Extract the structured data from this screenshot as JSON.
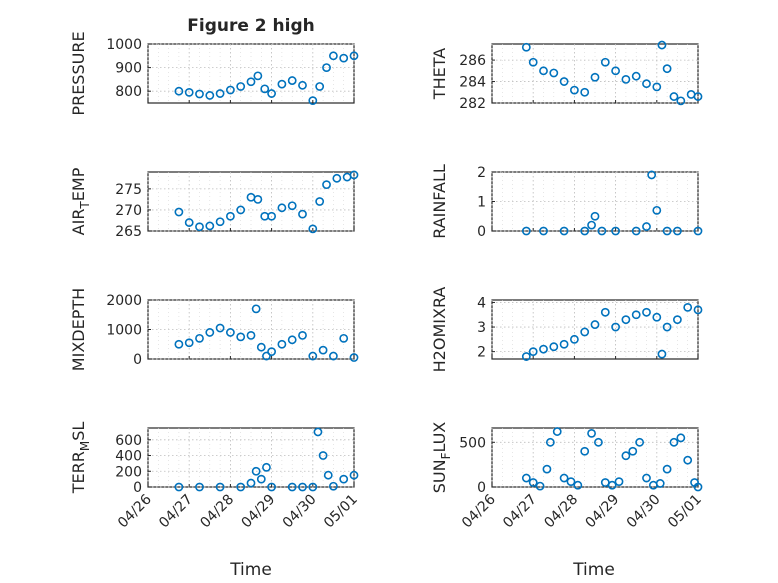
{
  "figure": {
    "title": "Figure 2 high",
    "xlabel": "Time",
    "x_ticks": [
      "04/26",
      "04/27",
      "04/28",
      "04/29",
      "04/30",
      "05/01"
    ],
    "marker_color": "#0072BD"
  },
  "chart_data": [
    {
      "type": "scatter",
      "panel": "top-left",
      "ylabel": "PRESSURE",
      "ylim": [
        750,
        1000
      ],
      "y_ticks": [
        800,
        900,
        1000
      ],
      "xlim": [
        "04/26",
        "05/01"
      ],
      "grid": true,
      "series": [
        {
          "x": [
            "04/26 18:00",
            "04/27 00:00",
            "04/27 06:00",
            "04/27 12:00",
            "04/27 18:00",
            "04/28 00:00",
            "04/28 06:00",
            "04/28 12:00",
            "04/28 16:00",
            "04/28 20:00",
            "04/29 00:00",
            "04/29 06:00",
            "04/29 12:00",
            "04/29 18:00",
            "04/30 00:00",
            "04/30 04:00",
            "04/30 08:00",
            "04/30 12:00",
            "04/30 18:00",
            "05/01 00:00"
          ],
          "y": [
            800,
            795,
            788,
            782,
            790,
            805,
            820,
            840,
            865,
            810,
            790,
            830,
            845,
            825,
            760,
            820,
            900,
            950,
            940,
            950
          ]
        }
      ]
    },
    {
      "type": "scatter",
      "panel": "top-right",
      "ylabel": "THETA",
      "ylim": [
        282,
        287.5
      ],
      "y_ticks": [
        282,
        284,
        286
      ],
      "xlim": [
        "04/26",
        "05/01"
      ],
      "grid": true,
      "series": [
        {
          "x": [
            "04/26 20:00",
            "04/27 00:00",
            "04/27 06:00",
            "04/27 12:00",
            "04/27 18:00",
            "04/28 00:00",
            "04/28 06:00",
            "04/28 12:00",
            "04/28 18:00",
            "04/29 00:00",
            "04/29 06:00",
            "04/29 12:00",
            "04/29 18:00",
            "04/30 00:00",
            "04/30 03:00",
            "04/30 06:00",
            "04/30 10:00",
            "04/30 14:00",
            "04/30 20:00",
            "05/01 00:00"
          ],
          "y": [
            287.2,
            285.8,
            285.0,
            284.8,
            284.0,
            283.2,
            283.0,
            284.4,
            285.8,
            285.0,
            284.2,
            284.5,
            283.8,
            283.5,
            287.4,
            285.2,
            282.6,
            282.2,
            282.8,
            282.6
          ]
        }
      ]
    },
    {
      "type": "scatter",
      "panel": "row2-left",
      "ylabel": "AIR_TEMP",
      "ylim": [
        265,
        279
      ],
      "y_ticks": [
        265,
        270,
        275
      ],
      "xlim": [
        "04/26",
        "05/01"
      ],
      "grid": true,
      "series": [
        {
          "x": [
            "04/26 18:00",
            "04/27 00:00",
            "04/27 06:00",
            "04/27 12:00",
            "04/27 18:00",
            "04/28 00:00",
            "04/28 06:00",
            "04/28 12:00",
            "04/28 16:00",
            "04/28 20:00",
            "04/29 00:00",
            "04/29 06:00",
            "04/29 12:00",
            "04/29 18:00",
            "04/30 00:00",
            "04/30 04:00",
            "04/30 08:00",
            "04/30 14:00",
            "04/30 20:00",
            "05/01 00:00"
          ],
          "y": [
            269.5,
            267.0,
            266.0,
            266.2,
            267.2,
            268.5,
            270.0,
            273.0,
            272.5,
            268.5,
            268.5,
            270.5,
            271.0,
            269.0,
            265.5,
            272.0,
            276.0,
            277.5,
            277.8,
            278.3
          ]
        }
      ]
    },
    {
      "type": "scatter",
      "panel": "row2-right",
      "ylabel": "RAINFALL",
      "ylim": [
        0,
        2
      ],
      "y_ticks": [
        0,
        1,
        2
      ],
      "xlim": [
        "04/26",
        "05/01"
      ],
      "grid": true,
      "series": [
        {
          "x": [
            "04/26 20:00",
            "04/27 06:00",
            "04/27 18:00",
            "04/28 06:00",
            "04/28 10:00",
            "04/28 12:00",
            "04/28 16:00",
            "04/29 00:00",
            "04/29 12:00",
            "04/29 18:00",
            "04/29 21:00",
            "04/30 00:00",
            "04/30 06:00",
            "04/30 12:00",
            "05/01 00:00"
          ],
          "y": [
            0,
            0,
            0,
            0,
            0.2,
            0.5,
            0,
            0,
            0,
            0.15,
            1.9,
            0.7,
            0,
            0,
            0
          ]
        }
      ]
    },
    {
      "type": "scatter",
      "panel": "row3-left",
      "ylabel": "MIXDEPTH",
      "ylim": [
        0,
        2000
      ],
      "y_ticks": [
        0,
        1000,
        2000
      ],
      "xlim": [
        "04/26",
        "05/01"
      ],
      "grid": true,
      "series": [
        {
          "x": [
            "04/26 18:00",
            "04/27 00:00",
            "04/27 06:00",
            "04/27 12:00",
            "04/27 18:00",
            "04/28 00:00",
            "04/28 06:00",
            "04/28 12:00",
            "04/28 15:00",
            "04/28 18:00",
            "04/28 21:00",
            "04/29 00:00",
            "04/29 06:00",
            "04/29 12:00",
            "04/29 18:00",
            "04/30 00:00",
            "04/30 06:00",
            "04/30 12:00",
            "04/30 18:00",
            "05/01 00:00"
          ],
          "y": [
            500,
            550,
            700,
            900,
            1050,
            900,
            750,
            800,
            1700,
            400,
            100,
            250,
            500,
            650,
            800,
            100,
            300,
            100,
            700,
            50
          ]
        }
      ]
    },
    {
      "type": "scatter",
      "panel": "row3-right",
      "ylabel": "H2OMIXRA",
      "ylim": [
        1.7,
        4.1
      ],
      "y_ticks": [
        2,
        3,
        4
      ],
      "xlim": [
        "04/26",
        "05/01"
      ],
      "grid": true,
      "series": [
        {
          "x": [
            "04/26 20:00",
            "04/27 00:00",
            "04/27 06:00",
            "04/27 12:00",
            "04/27 18:00",
            "04/28 00:00",
            "04/28 06:00",
            "04/28 12:00",
            "04/28 18:00",
            "04/29 00:00",
            "04/29 06:00",
            "04/29 12:00",
            "04/29 18:00",
            "04/30 00:00",
            "04/30 03:00",
            "04/30 06:00",
            "04/30 12:00",
            "04/30 18:00",
            "05/01 00:00"
          ],
          "y": [
            1.8,
            2.0,
            2.1,
            2.2,
            2.3,
            2.5,
            2.8,
            3.1,
            3.6,
            3.0,
            3.3,
            3.5,
            3.6,
            3.4,
            1.9,
            3.0,
            3.3,
            3.8,
            3.7
          ]
        }
      ]
    },
    {
      "type": "scatter",
      "panel": "bottom-left",
      "ylabel": "TERR_MSL",
      "ylim": [
        0,
        750
      ],
      "y_ticks": [
        0,
        200,
        400,
        600
      ],
      "xlim": [
        "04/26",
        "05/01"
      ],
      "grid": true,
      "series": [
        {
          "x": [
            "04/26 18:00",
            "04/27 06:00",
            "04/27 18:00",
            "04/28 06:00",
            "04/28 12:00",
            "04/28 15:00",
            "04/28 18:00",
            "04/28 21:00",
            "04/29 00:00",
            "04/29 12:00",
            "04/29 18:00",
            "04/30 00:00",
            "04/30 03:00",
            "04/30 06:00",
            "04/30 09:00",
            "04/30 12:00",
            "04/30 18:00",
            "05/01 00:00"
          ],
          "y": [
            0,
            0,
            0,
            0,
            50,
            200,
            100,
            250,
            0,
            0,
            0,
            0,
            700,
            400,
            150,
            10,
            100,
            150
          ]
        }
      ]
    },
    {
      "type": "scatter",
      "panel": "bottom-right",
      "ylabel": "SUN_FLUX",
      "ylim": [
        0,
        660
      ],
      "y_ticks": [
        0,
        500
      ],
      "xlim": [
        "04/26",
        "05/01"
      ],
      "grid": true,
      "series": [
        {
          "x": [
            "04/26 20:00",
            "04/27 00:00",
            "04/27 04:00",
            "04/27 08:00",
            "04/27 10:00",
            "04/27 14:00",
            "04/27 18:00",
            "04/27 22:00",
            "04/28 02:00",
            "04/28 06:00",
            "04/28 10:00",
            "04/28 14:00",
            "04/28 18:00",
            "04/28 22:00",
            "04/29 02:00",
            "04/29 06:00",
            "04/29 10:00",
            "04/29 14:00",
            "04/29 18:00",
            "04/29 22:00",
            "04/30 02:00",
            "04/30 06:00",
            "04/30 10:00",
            "04/30 14:00",
            "04/30 18:00",
            "04/30 22:00",
            "05/01 00:00"
          ],
          "y": [
            100,
            50,
            10,
            200,
            500,
            620,
            100,
            60,
            20,
            400,
            600,
            500,
            50,
            20,
            60,
            350,
            400,
            500,
            100,
            20,
            40,
            200,
            500,
            550,
            300,
            50,
            0
          ]
        }
      ]
    }
  ]
}
